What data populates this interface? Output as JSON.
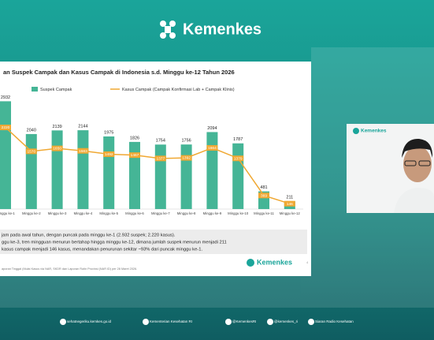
{
  "header": {
    "logo": "Kemenkes"
  },
  "chart_data": {
    "type": "bar_line",
    "title": "an Suspek Campak dan Kasus Campak di Indonesia s.d. Minggu ke-12 Tahun 2026",
    "categories": [
      "Minggu ke-1",
      "Minggu ke-2",
      "Minggu ke-3",
      "Minggu ke-4",
      "Minggu ke-5",
      "Minggu ke-6",
      "Minggu ke-7",
      "Minggu ke-8",
      "Minggu ke-9",
      "Minggu ke-10",
      "Minggu ke-11",
      "Minggu ke-12"
    ],
    "series": [
      {
        "name": "Suspek Campak",
        "color": "#45b596",
        "kind": "bar",
        "values": [
          2932,
          2040,
          2139,
          2144,
          1975,
          1826,
          1754,
          1756,
          2094,
          1787,
          481,
          211
        ]
      },
      {
        "name": "Kasus Campak (Campak Konfirmasi Lab + Campak Klinis)",
        "color": "#f0a832",
        "kind": "line",
        "values": [
          2220,
          1570,
          1650,
          1583,
          1492,
          1467,
          1377,
          1392,
          1664,
          1379,
          369,
          146
        ]
      }
    ]
  },
  "notes": [
    "jam pada awal tahun, dengan puncak pada minggu ke-1 (2.932 suspek; 2.220 kasus).",
    "ggu ke-3, tren mingguan menurun bertahap hingga minggu ke-12, dimana jumlah suspek menurun menjadi 211",
    "kasus campak menjadi 146 kasus, menandakan penurunan sekitar ~93% dari puncak minggu ke-1."
  ],
  "source": "aporan Tinggal (Mulai Kasus via NAR, SKDR dan Laporan Rutin Provinsi (NAR ID) per 28 Maret 2026.",
  "slide_logo": "Kemenkes",
  "slide_page": "4",
  "video_logo": "Kemenkes",
  "footer": [
    "sehatnegeriku.kemkes.go.id",
    "Kementerian Kesehatan RI",
    "@KemenkesRI",
    "@kemenkes_ri",
    "Siaran Radio Kesehatan"
  ]
}
